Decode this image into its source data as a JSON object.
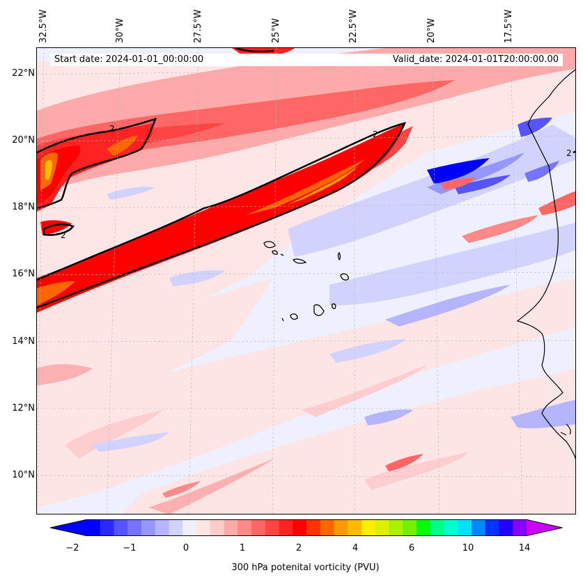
{
  "title_bar": {
    "start_date": "Start date: 2024-01-01_00:00:00",
    "valid_date": "Valid_date: 2024-01-01T20:00:00.00"
  },
  "axes": {
    "longitude_labels": [
      "32.5°W",
      "30°W",
      "27.5°W",
      "25°W",
      "22.5°W",
      "20°W",
      "17.5°W"
    ],
    "latitude_labels": [
      "22°N",
      "20°N",
      "18°N",
      "16°N",
      "14°N",
      "12°N",
      "10°N"
    ]
  },
  "contour": {
    "label": "2"
  },
  "colorbar": {
    "label": "300 hPa potenital vorticity (PVU)",
    "tick_labels": [
      "−2",
      "−1",
      "0",
      "1",
      "2",
      "4",
      "6",
      "10",
      "14"
    ],
    "colors": [
      "#0000ff",
      "#2a2aff",
      "#5555ff",
      "#7474ff",
      "#9696ff",
      "#b4b4ff",
      "#d2d2ff",
      "#eef0ff",
      "#ffe4e4",
      "#ffcaca",
      "#ffaaaa",
      "#ff8888",
      "#ff6666",
      "#ff4444",
      "#ff2222",
      "#ff0000",
      "#ff3300",
      "#ff6600",
      "#ff9900",
      "#ffbb00",
      "#ffee00",
      "#ddf000",
      "#aaf000",
      "#77f000",
      "#00ff00",
      "#00ff88",
      "#00ffcc",
      "#00e0ff",
      "#0088ff",
      "#0033ff",
      "#2200ff",
      "#8800ff"
    ],
    "extend_low": "#0000ff",
    "extend_high": "#cc00ff"
  }
}
